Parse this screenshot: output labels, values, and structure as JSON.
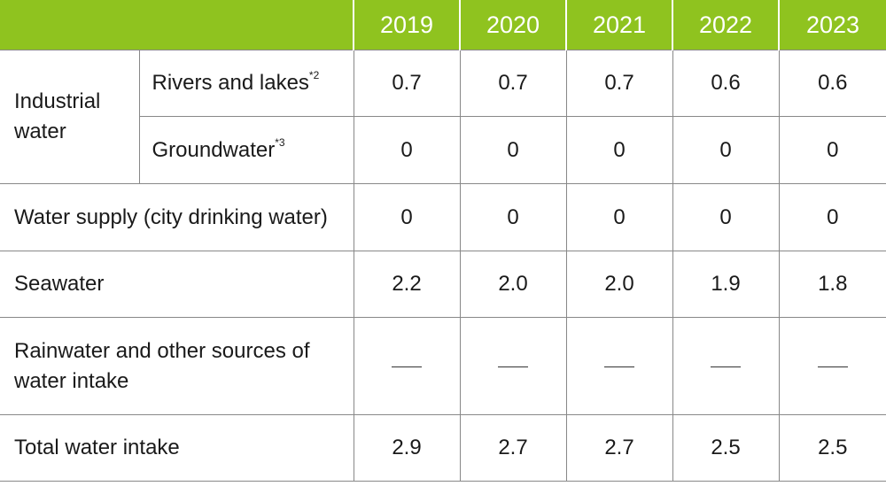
{
  "header": {
    "years": [
      "2019",
      "2020",
      "2021",
      "2022",
      "2023"
    ]
  },
  "rows": {
    "industrial": {
      "label_line1": "Industrial",
      "label_line2": "water",
      "rivers": {
        "label": "Rivers and lakes",
        "note": "*2",
        "values": [
          "0.7",
          "0.7",
          "0.7",
          "0.6",
          "0.6"
        ]
      },
      "groundwater": {
        "label": "Groundwater",
        "note": "*3",
        "values": [
          "0",
          "0",
          "0",
          "0",
          "0"
        ]
      }
    },
    "water_supply": {
      "label": "Water supply (city drinking water)",
      "values": [
        "0",
        "0",
        "0",
        "0",
        "0"
      ]
    },
    "seawater": {
      "label": "Seawater",
      "values": [
        "2.2",
        "2.0",
        "2.0",
        "1.9",
        "1.8"
      ]
    },
    "rainwater": {
      "label_line1": "Rainwater and other sources of",
      "label_line2": "water intake",
      "values": [
        "—",
        "—",
        "—",
        "—",
        "—"
      ]
    },
    "total": {
      "label": "Total water intake",
      "values": [
        "2.9",
        "2.7",
        "2.7",
        "2.5",
        "2.5"
      ]
    }
  },
  "colors": {
    "header_bg": "#8fc31f",
    "header_text": "#ffffff",
    "rule": "#888888"
  }
}
